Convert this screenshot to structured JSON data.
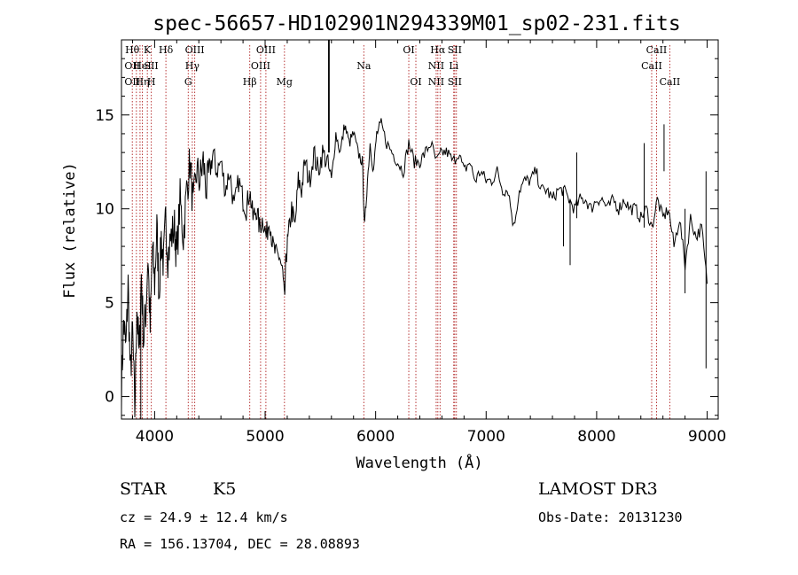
{
  "chart_data": {
    "type": "line",
    "title": "spec-56657-HD102901N294339M01_sp02-231.fits",
    "xlabel": "Wavelength (Å)",
    "ylabel": "Flux (relative)",
    "xlim": [
      3700,
      9100
    ],
    "ylim": [
      -1.2,
      19.0
    ],
    "x_ticks": [
      4000,
      5000,
      6000,
      7000,
      8000,
      9000
    ],
    "y_ticks": [
      0,
      5,
      10,
      15
    ],
    "grid": false,
    "series": [
      {
        "name": "spectrum",
        "x": [
          3700,
          3720,
          3740,
          3760,
          3780,
          3800,
          3820,
          3840,
          3860,
          3880,
          3900,
          3920,
          3940,
          3960,
          3980,
          4000,
          4020,
          4040,
          4060,
          4080,
          4100,
          4120,
          4150,
          4180,
          4200,
          4230,
          4260,
          4290,
          4320,
          4350,
          4380,
          4410,
          4440,
          4470,
          4500,
          4530,
          4560,
          4600,
          4640,
          4680,
          4720,
          4760,
          4800,
          4830,
          4860,
          4890,
          4920,
          4950,
          4980,
          5010,
          5040,
          5070,
          5100,
          5130,
          5160,
          5175,
          5190,
          5210,
          5240,
          5270,
          5300,
          5330,
          5360,
          5400,
          5440,
          5480,
          5520,
          5560,
          5600,
          5640,
          5680,
          5720,
          5760,
          5800,
          5840,
          5880,
          5900,
          5920,
          5950,
          5980,
          6010,
          6050,
          6100,
          6150,
          6200,
          6250,
          6300,
          6350,
          6400,
          6450,
          6500,
          6550,
          6600,
          6650,
          6700,
          6750,
          6800,
          6850,
          6900,
          6950,
          7000,
          7050,
          7100,
          7150,
          7200,
          7250,
          7300,
          7350,
          7400,
          7450,
          7500,
          7550,
          7600,
          7650,
          7700,
          7750,
          7800,
          7850,
          7900,
          7950,
          8000,
          8050,
          8100,
          8150,
          8200,
          8250,
          8300,
          8350,
          8400,
          8450,
          8500,
          8550,
          8600,
          8650,
          8700,
          8750,
          8800,
          8850,
          8900,
          8950,
          9000
        ],
        "y": [
          0.5,
          4.0,
          2.5,
          6.0,
          1.0,
          3.5,
          -0.8,
          5.0,
          2.0,
          6.5,
          3.0,
          4.5,
          7.5,
          3.5,
          8.0,
          6.0,
          9.0,
          5.5,
          8.5,
          7.0,
          9.5,
          7.5,
          8.5,
          9.0,
          7.5,
          10.5,
          8.5,
          11.0,
          12.5,
          10.0,
          12.0,
          11.5,
          12.5,
          11.0,
          12.0,
          13.0,
          12.0,
          12.5,
          11.0,
          12.0,
          10.0,
          11.5,
          10.5,
          10.0,
          11.0,
          9.5,
          10.0,
          9.0,
          9.5,
          8.5,
          9.5,
          8.0,
          7.5,
          7.5,
          6.5,
          5.0,
          7.5,
          8.5,
          10.0,
          9.0,
          11.5,
          11.0,
          12.5,
          11.5,
          13.0,
          12.0,
          13.0,
          12.5,
          11.5,
          14.0,
          13.0,
          14.5,
          13.5,
          14.0,
          13.0,
          12.5,
          9.0,
          11.0,
          13.5,
          12.0,
          14.0,
          14.5,
          13.5,
          13.0,
          12.5,
          12.0,
          13.5,
          12.5,
          12.5,
          13.0,
          13.5,
          12.5,
          13.0,
          13.0,
          12.5,
          13.0,
          12.0,
          12.5,
          11.5,
          12.0,
          11.5,
          11.5,
          12.0,
          11.0,
          11.0,
          9.0,
          11.0,
          11.5,
          11.5,
          12.0,
          11.0,
          11.0,
          10.5,
          11.0,
          11.0,
          10.5,
          10.0,
          10.5,
          10.5,
          10.0,
          10.5,
          10.5,
          10.0,
          10.5,
          10.0,
          10.5,
          10.0,
          10.0,
          9.5,
          10.0,
          9.0,
          10.5,
          9.5,
          10.0,
          8.0,
          9.5,
          7.0,
          9.5,
          8.5,
          9.0,
          6.0
        ]
      }
    ],
    "spikes": [
      {
        "x": 3875,
        "low": -1.2,
        "high": 5.5
      },
      {
        "x": 5577,
        "low": 13.0,
        "high": 19.0
      },
      {
        "x": 7700,
        "low": 8.0,
        "high": 11.0
      },
      {
        "x": 7760,
        "low": 7.0,
        "high": 10.5
      },
      {
        "x": 7820,
        "low": 9.5,
        "high": 13.0
      },
      {
        "x": 8430,
        "low": 9.0,
        "high": 13.5
      },
      {
        "x": 8610,
        "low": 12.0,
        "high": 14.5
      },
      {
        "x": 8800,
        "low": 5.5,
        "high": 10.0
      },
      {
        "x": 8990,
        "low": 1.5,
        "high": 12.0
      }
    ],
    "lines": [
      {
        "x": 3798,
        "rows": [
          "Hθ",
          "OII",
          "OII"
        ]
      },
      {
        "x": 3835,
        "rows": [
          "",
          "",
          ""
        ]
      },
      {
        "x": 3868,
        "rows": [
          "",
          "",
          ""
        ]
      },
      {
        "x": 3889,
        "rows": [
          "",
          "HeI",
          "Hη"
        ]
      },
      {
        "x": 3934,
        "rows": [
          "K",
          "",
          ""
        ]
      },
      {
        "x": 3970,
        "rows": [
          "",
          "SII",
          "H"
        ]
      },
      {
        "x": 4102,
        "rows": [
          "Hδ",
          "",
          ""
        ]
      },
      {
        "x": 4304,
        "rows": [
          "",
          "",
          "G"
        ]
      },
      {
        "x": 4341,
        "rows": [
          "",
          "Hγ",
          ""
        ]
      },
      {
        "x": 4363,
        "rows": [
          "OIII",
          "",
          ""
        ]
      },
      {
        "x": 4861,
        "rows": [
          "",
          "",
          "Hβ"
        ]
      },
      {
        "x": 4959,
        "rows": [
          "",
          "OIII",
          ""
        ]
      },
      {
        "x": 5007,
        "rows": [
          "OIII",
          "",
          ""
        ]
      },
      {
        "x": 5175,
        "rows": [
          "",
          "",
          "Mg"
        ]
      },
      {
        "x": 5893,
        "rows": [
          "",
          "Na",
          ""
        ]
      },
      {
        "x": 6300,
        "rows": [
          "OI",
          "",
          ""
        ]
      },
      {
        "x": 6364,
        "rows": [
          "",
          "",
          "OI"
        ]
      },
      {
        "x": 6548,
        "rows": [
          "",
          "NII",
          "NII"
        ]
      },
      {
        "x": 6563,
        "rows": [
          "Hα",
          "",
          ""
        ]
      },
      {
        "x": 6583,
        "rows": [
          "",
          "",
          ""
        ]
      },
      {
        "x": 6707,
        "rows": [
          "",
          "Li",
          ""
        ]
      },
      {
        "x": 6716,
        "rows": [
          "SII",
          "",
          "SII"
        ]
      },
      {
        "x": 6731,
        "rows": [
          "",
          "",
          ""
        ]
      },
      {
        "x": 8498,
        "rows": [
          "",
          "CaII",
          ""
        ]
      },
      {
        "x": 8542,
        "rows": [
          "CaII",
          "",
          ""
        ]
      },
      {
        "x": 8662,
        "rows": [
          "",
          "",
          "CaII"
        ]
      }
    ]
  },
  "info": {
    "object_class": "STAR",
    "subclass": "K5",
    "survey": "LAMOST DR3",
    "cz": "cz = 24.9 ± 12.4 km/s",
    "obs_date": "Obs-Date: 20131230",
    "coords": "RA = 156.13704, DEC =  28.08893"
  },
  "colors": {
    "spectrum": "#000000",
    "line_marker": "#b02020",
    "axis": "#000000"
  }
}
